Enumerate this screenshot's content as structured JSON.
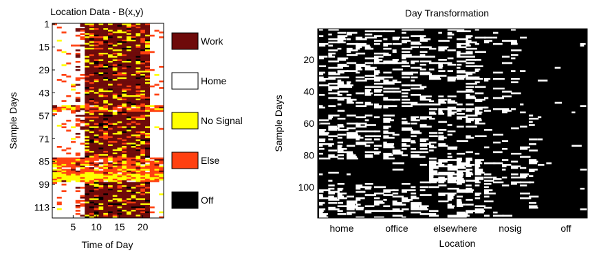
{
  "chart_data": [
    {
      "type": "heatmap",
      "title": "Location Data - B(x,y)",
      "xlabel": "Time of Day",
      "ylabel": "Sample Days",
      "xlim": [
        1,
        24
      ],
      "ylim": [
        1,
        119
      ],
      "x_ticks": [
        "5",
        "10",
        "15",
        "20"
      ],
      "y_ticks": [
        "1",
        "15",
        "29",
        "43",
        "57",
        "71",
        "85",
        "99",
        "113"
      ],
      "legend": [
        {
          "label": "Work",
          "color": "#6e0a0a"
        },
        {
          "label": "Home",
          "color": "#ffffff"
        },
        {
          "label": "No Signal",
          "color": "#ffff00"
        },
        {
          "label": "Else",
          "color": "#ff4010"
        },
        {
          "label": "Off",
          "color": "#000000"
        }
      ]
    },
    {
      "type": "heatmap",
      "title": "Day Transformation",
      "xlabel": "Location",
      "ylabel": "Sample Days",
      "ylim": [
        1,
        119
      ],
      "x_ticks": [
        "home",
        "office",
        "elsewhere",
        "nosig",
        "off"
      ],
      "y_ticks": [
        "20",
        "40",
        "60",
        "80",
        "100"
      ],
      "colors": {
        "empty": "#000000",
        "occupied": "#ffffff"
      }
    }
  ]
}
